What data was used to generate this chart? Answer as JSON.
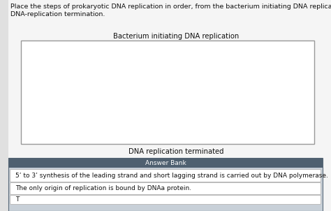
{
  "page_bg": "#f5f5f5",
  "content_bg": "#ffffff",
  "instruction_text_line1": "Place the steps of prokaryotic DNA replication in order, from the bacterium initiating DNA replication to",
  "instruction_text_line2": "DNA-replication termination.",
  "top_label": "Bacterium initiating DNA replication",
  "bottom_label": "DNA replication terminated",
  "answer_bank_header": "Answer Bank",
  "answer_bank_header_bg": "#4f6070",
  "answer_bank_header_color": "#ffffff",
  "answer_bank_bg": "#c8d0d8",
  "item1": "5’ to 3’ synthesis of the leading strand and short lagging strand is carried out by DNA polymerase.",
  "item2": "The only origin of replication is bound by DNAa protein.",
  "item3_partial": "T                                                                                       ",
  "box_border": "#999999",
  "box_bg": "#ffffff",
  "item_border": "#bbbbbb",
  "item_bg": "#ffffff",
  "left_stripe_bg": "#e0e0e0",
  "font_size_instruction": 6.8,
  "font_size_label": 7.2,
  "font_size_answer_header": 6.5,
  "font_size_item": 6.5
}
